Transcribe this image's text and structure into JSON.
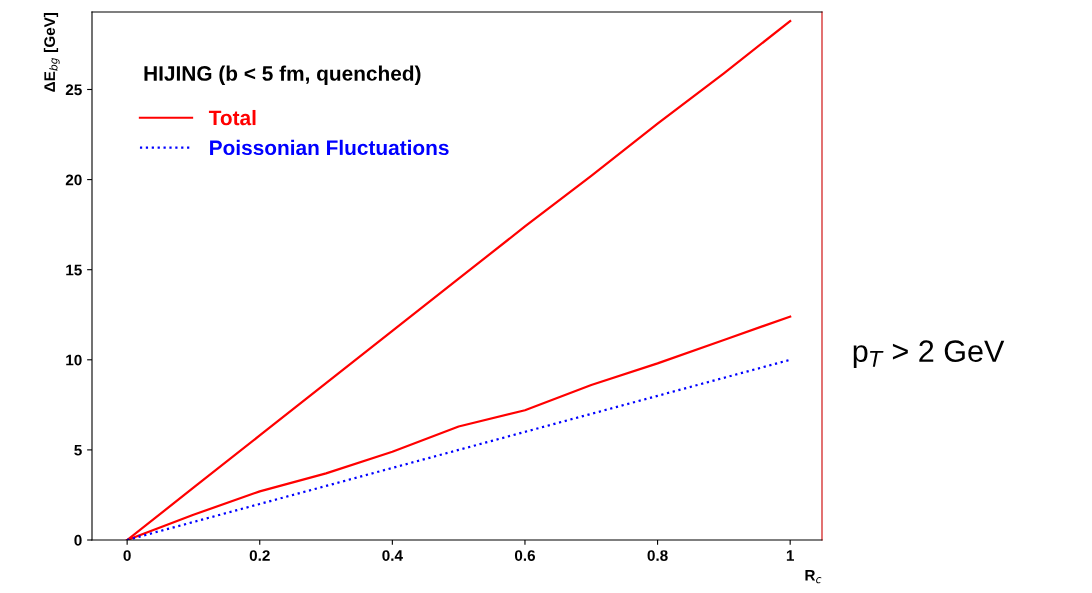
{
  "chart_data": {
    "type": "line",
    "xlabel": "R$_{c}$",
    "ylabel": "ΔE$_{bg}$ [GeV]",
    "annotations": [
      "HIJING (b < 5 fm, quenched)",
      "p$_{T}$ > 2 GeV"
    ],
    "x": [
      0,
      0.1,
      0.2,
      0.3,
      0.4,
      0.5,
      0.6,
      0.7,
      0.8,
      0.9,
      1
    ],
    "series": [
      {
        "name": "Total",
        "color": "#ff0000",
        "line_style": "solid",
        "values": [
          0,
          2.9,
          5.8,
          8.7,
          11.6,
          14.5,
          17.4,
          20.2,
          23.1,
          25.9,
          28.8
        ]
      },
      {
        "color": "#ff0000",
        "line_style": "solid",
        "values": [
          0,
          1.4,
          2.7,
          3.7,
          4.9,
          6.3,
          7.2,
          8.6,
          9.8,
          11.1,
          12.4
        ]
      },
      {
        "name": "Poissonian Fluctuations",
        "color": "#0000ff",
        "line_style": "dotted",
        "values": [
          0,
          1.0,
          2.0,
          3.0,
          4.0,
          5.0,
          6.0,
          7.0,
          8.0,
          9.0,
          10.0
        ]
      }
    ],
    "xlim": [
      -0.053,
      1.048
    ],
    "ylim": [
      0,
      29.3
    ],
    "xticks": [
      {
        "value": 0,
        "label": "0"
      },
      0.2,
      0.4,
      0.6,
      0.8,
      {
        "value": 1,
        "label": "1"
      }
    ],
    "yticks": [
      0,
      5,
      10,
      15,
      20,
      25
    ],
    "grid": false,
    "legend": "top left",
    "marker": "none"
  }
}
